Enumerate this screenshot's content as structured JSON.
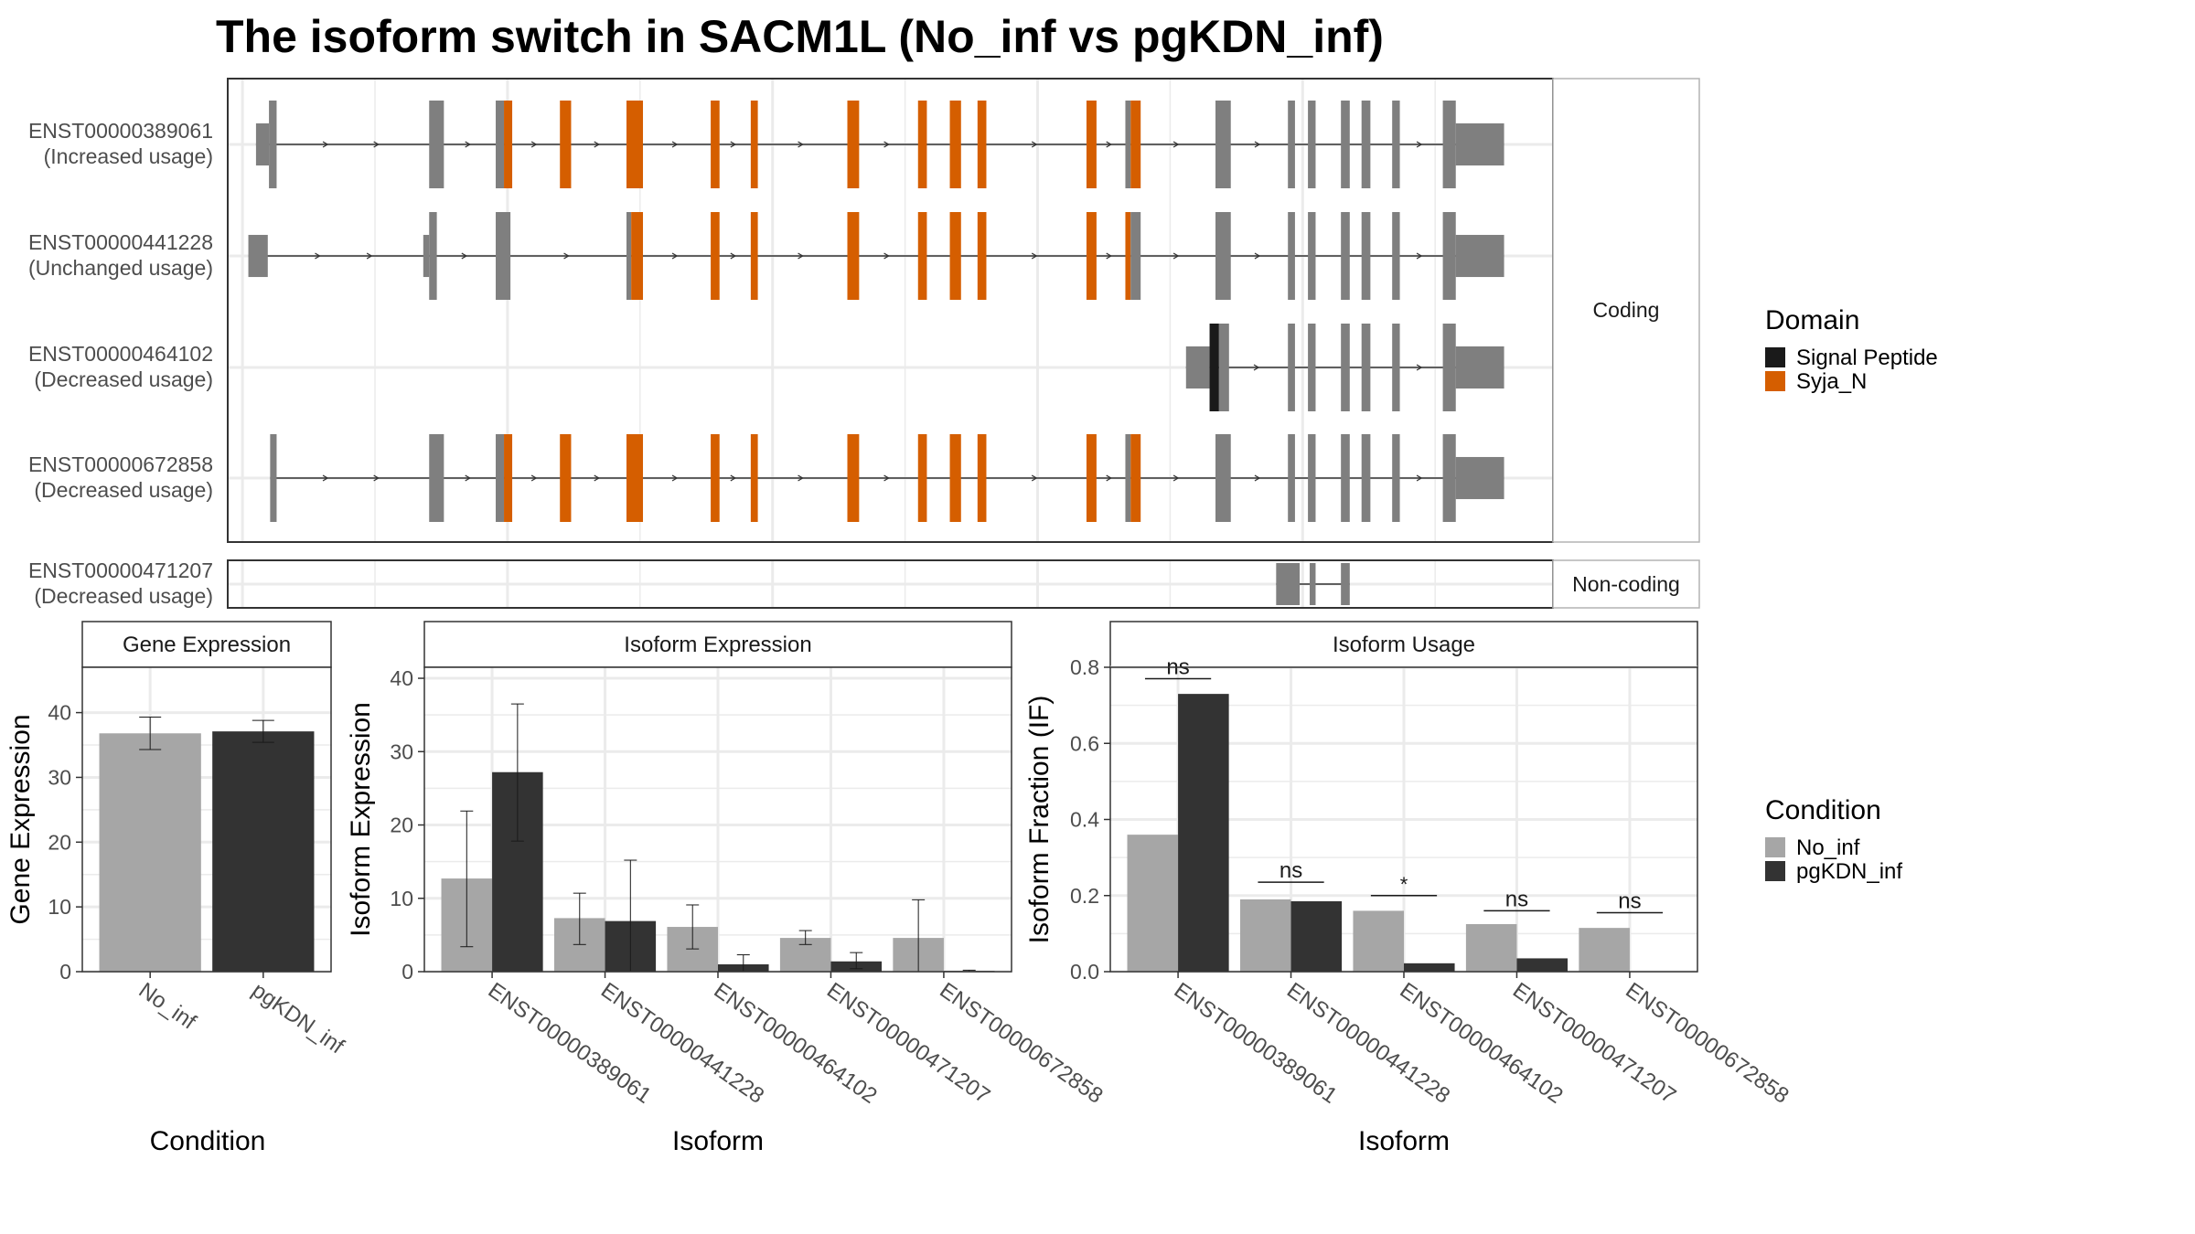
{
  "chart_data": [
    {
      "type": "gene-structure",
      "title": "The isoform switch in SACM1L (No_inf vs pgKDN_inf)",
      "coding_facet_label": "Coding",
      "noncoding_facet_label": "Non-coding",
      "legend": {
        "title": "Domain",
        "entries": [
          {
            "name": "Signal Peptide",
            "color": "#1a1a1a"
          },
          {
            "name": "Syja_N",
            "color": "#d55e00"
          }
        ]
      },
      "colors": {
        "exon": "#7f7f7f",
        "intron": "#333333",
        "grid": "#ebebeb",
        "frame": "#333333"
      },
      "genomic_range": [
        100,
        2350
      ],
      "transcripts": [
        {
          "id": "ENST00000389061",
          "usage": "(Increased usage)",
          "group": "coding",
          "exons": [
            {
              "start": 148,
              "end": 170,
              "h": 0.48,
              "d": "none"
            },
            {
              "start": 170,
              "end": 183,
              "h": 1,
              "d": "none"
            },
            {
              "start": 442,
              "end": 467,
              "h": 1,
              "d": "none"
            },
            {
              "start": 555,
              "end": 569,
              "h": 1,
              "d": "none"
            },
            {
              "start": 569,
              "end": 583,
              "h": 1,
              "d": "Syja_N"
            },
            {
              "start": 664,
              "end": 683,
              "h": 1,
              "d": "Syja_N"
            },
            {
              "start": 777,
              "end": 805,
              "h": 1,
              "d": "Syja_N"
            },
            {
              "start": 920,
              "end": 935,
              "h": 1,
              "d": "Syja_N"
            },
            {
              "start": 988,
              "end": 1000,
              "h": 1,
              "d": "Syja_N"
            },
            {
              "start": 1152,
              "end": 1172,
              "h": 1,
              "d": "Syja_N"
            },
            {
              "start": 1272,
              "end": 1287,
              "h": 1,
              "d": "Syja_N"
            },
            {
              "start": 1326,
              "end": 1345,
              "h": 1,
              "d": "Syja_N"
            },
            {
              "start": 1373,
              "end": 1388,
              "h": 1,
              "d": "Syja_N"
            },
            {
              "start": 1558,
              "end": 1575,
              "h": 1,
              "d": "Syja_N"
            },
            {
              "start": 1624,
              "end": 1633,
              "h": 1,
              "d": "none"
            },
            {
              "start": 1633,
              "end": 1650,
              "h": 1,
              "d": "Syja_N"
            },
            {
              "start": 1777,
              "end": 1803,
              "h": 1,
              "d": "none"
            },
            {
              "start": 1900,
              "end": 1912,
              "h": 1,
              "d": "none"
            },
            {
              "start": 1934,
              "end": 1947,
              "h": 1,
              "d": "none"
            },
            {
              "start": 1990,
              "end": 2005,
              "h": 1,
              "d": "none"
            },
            {
              "start": 2025,
              "end": 2040,
              "h": 1,
              "d": "none"
            },
            {
              "start": 2077,
              "end": 2090,
              "h": 1,
              "d": "none"
            },
            {
              "start": 2163,
              "end": 2185,
              "h": 1,
              "d": "none"
            },
            {
              "start": 2185,
              "end": 2267,
              "h": 0.48,
              "d": "none"
            }
          ]
        },
        {
          "id": "ENST00000441228",
          "usage": "(Unchanged usage)",
          "group": "coding",
          "exons": [
            {
              "start": 135,
              "end": 168,
              "h": 0.48,
              "d": "none"
            },
            {
              "start": 432,
              "end": 442,
              "h": 0.48,
              "d": "none"
            },
            {
              "start": 442,
              "end": 455,
              "h": 1,
              "d": "none"
            },
            {
              "start": 555,
              "end": 580,
              "h": 1,
              "d": "none"
            },
            {
              "start": 777,
              "end": 785,
              "h": 1,
              "d": "none"
            },
            {
              "start": 785,
              "end": 805,
              "h": 1,
              "d": "Syja_N"
            },
            {
              "start": 920,
              "end": 935,
              "h": 1,
              "d": "Syja_N"
            },
            {
              "start": 988,
              "end": 1000,
              "h": 1,
              "d": "Syja_N"
            },
            {
              "start": 1152,
              "end": 1172,
              "h": 1,
              "d": "Syja_N"
            },
            {
              "start": 1272,
              "end": 1287,
              "h": 1,
              "d": "Syja_N"
            },
            {
              "start": 1326,
              "end": 1345,
              "h": 1,
              "d": "Syja_N"
            },
            {
              "start": 1373,
              "end": 1388,
              "h": 1,
              "d": "Syja_N"
            },
            {
              "start": 1558,
              "end": 1575,
              "h": 1,
              "d": "Syja_N"
            },
            {
              "start": 1624,
              "end": 1633,
              "h": 1,
              "d": "Syja_N"
            },
            {
              "start": 1633,
              "end": 1650,
              "h": 1,
              "d": "none"
            },
            {
              "start": 1777,
              "end": 1803,
              "h": 1,
              "d": "none"
            },
            {
              "start": 1900,
              "end": 1912,
              "h": 1,
              "d": "none"
            },
            {
              "start": 1934,
              "end": 1947,
              "h": 1,
              "d": "none"
            },
            {
              "start": 1990,
              "end": 2005,
              "h": 1,
              "d": "none"
            },
            {
              "start": 2025,
              "end": 2040,
              "h": 1,
              "d": "none"
            },
            {
              "start": 2077,
              "end": 2090,
              "h": 1,
              "d": "none"
            },
            {
              "start": 2163,
              "end": 2185,
              "h": 1,
              "d": "none"
            },
            {
              "start": 2185,
              "end": 2267,
              "h": 0.48,
              "d": "none"
            }
          ]
        },
        {
          "id": "ENST00000464102",
          "usage": "(Decreased usage)",
          "group": "coding",
          "exons": [
            {
              "start": 1727,
              "end": 1767,
              "h": 0.48,
              "d": "none"
            },
            {
              "start": 1767,
              "end": 1783,
              "h": 1,
              "d": "Signal Peptide"
            },
            {
              "start": 1783,
              "end": 1800,
              "h": 1,
              "d": "none"
            },
            {
              "start": 1900,
              "end": 1912,
              "h": 1,
              "d": "none"
            },
            {
              "start": 1934,
              "end": 1947,
              "h": 1,
              "d": "none"
            },
            {
              "start": 1990,
              "end": 2005,
              "h": 1,
              "d": "none"
            },
            {
              "start": 2025,
              "end": 2040,
              "h": 1,
              "d": "none"
            },
            {
              "start": 2077,
              "end": 2090,
              "h": 1,
              "d": "none"
            },
            {
              "start": 2163,
              "end": 2185,
              "h": 1,
              "d": "none"
            },
            {
              "start": 2185,
              "end": 2267,
              "h": 0.48,
              "d": "none"
            }
          ]
        },
        {
          "id": "ENST00000672858",
          "usage": "(Decreased usage)",
          "group": "coding",
          "exons": [
            {
              "start": 172,
              "end": 183,
              "h": 1,
              "d": "none"
            },
            {
              "start": 442,
              "end": 467,
              "h": 1,
              "d": "none"
            },
            {
              "start": 555,
              "end": 569,
              "h": 1,
              "d": "none"
            },
            {
              "start": 569,
              "end": 583,
              "h": 1,
              "d": "Syja_N"
            },
            {
              "start": 664,
              "end": 683,
              "h": 1,
              "d": "Syja_N"
            },
            {
              "start": 777,
              "end": 805,
              "h": 1,
              "d": "Syja_N"
            },
            {
              "start": 920,
              "end": 935,
              "h": 1,
              "d": "Syja_N"
            },
            {
              "start": 988,
              "end": 1000,
              "h": 1,
              "d": "Syja_N"
            },
            {
              "start": 1152,
              "end": 1172,
              "h": 1,
              "d": "Syja_N"
            },
            {
              "start": 1272,
              "end": 1287,
              "h": 1,
              "d": "Syja_N"
            },
            {
              "start": 1326,
              "end": 1345,
              "h": 1,
              "d": "Syja_N"
            },
            {
              "start": 1373,
              "end": 1388,
              "h": 1,
              "d": "Syja_N"
            },
            {
              "start": 1558,
              "end": 1575,
              "h": 1,
              "d": "Syja_N"
            },
            {
              "start": 1624,
              "end": 1633,
              "h": 1,
              "d": "none"
            },
            {
              "start": 1633,
              "end": 1650,
              "h": 1,
              "d": "Syja_N"
            },
            {
              "start": 1777,
              "end": 1803,
              "h": 1,
              "d": "none"
            },
            {
              "start": 1900,
              "end": 1912,
              "h": 1,
              "d": "none"
            },
            {
              "start": 1934,
              "end": 1947,
              "h": 1,
              "d": "none"
            },
            {
              "start": 1990,
              "end": 2005,
              "h": 1,
              "d": "none"
            },
            {
              "start": 2025,
              "end": 2040,
              "h": 1,
              "d": "none"
            },
            {
              "start": 2077,
              "end": 2090,
              "h": 1,
              "d": "none"
            },
            {
              "start": 2163,
              "end": 2185,
              "h": 1,
              "d": "none"
            },
            {
              "start": 2185,
              "end": 2267,
              "h": 0.48,
              "d": "none"
            }
          ]
        },
        {
          "id": "ENST00000471207",
          "usage": "(Decreased usage)",
          "group": "noncoding",
          "exons": [
            {
              "start": 1880,
              "end": 1920,
              "h": 1,
              "d": "none"
            },
            {
              "start": 1937,
              "end": 1947,
              "h": 1,
              "d": "none"
            },
            {
              "start": 1990,
              "end": 2005,
              "h": 1,
              "d": "none"
            }
          ]
        }
      ]
    },
    {
      "type": "bar",
      "facet_title": "Gene Expression",
      "xlabel": "Condition",
      "ylabel": "Gene Expression",
      "ylim": [
        0,
        47
      ],
      "yticks": [
        0,
        10,
        20,
        30,
        40
      ],
      "categories": [
        "No_inf",
        "pgKDN_inf"
      ],
      "values": [
        36.8,
        37.1
      ],
      "errors_low": [
        34.3,
        35.4
      ],
      "errors_high": [
        39.3,
        38.8
      ],
      "colors": [
        "#a6a6a6",
        "#333333"
      ],
      "grid": true
    },
    {
      "type": "bar",
      "facet_title": "Isoform Expression",
      "xlabel": "Isoform",
      "ylabel": "Isoform Expression",
      "ylim": [
        0,
        41.5
      ],
      "yticks": [
        0,
        10,
        20,
        30,
        40
      ],
      "categories": [
        "ENST00000389061",
        "ENST00000441228",
        "ENST00000464102",
        "ENST00000471207",
        "ENST00000672858"
      ],
      "series": [
        {
          "name": "No_inf",
          "color": "#a6a6a6",
          "values": [
            12.7,
            7.3,
            6.1,
            4.6,
            4.6
          ],
          "err_low": [
            3.4,
            3.7,
            3.1,
            3.7,
            0
          ],
          "err_high": [
            21.9,
            10.7,
            9.1,
            5.6,
            9.8
          ]
        },
        {
          "name": "pgKDN_inf",
          "color": "#333333",
          "values": [
            27.2,
            6.9,
            1.0,
            1.4,
            0.1
          ],
          "err_low": [
            17.8,
            0,
            0,
            0.4,
            0
          ],
          "err_high": [
            36.5,
            15.2,
            2.3,
            2.6,
            0.2
          ]
        }
      ],
      "grid": true
    },
    {
      "type": "bar",
      "facet_title": "Isoform Usage",
      "xlabel": "Isoform",
      "ylabel": "Isoform Fraction (IF)",
      "ylim": [
        0,
        0.8
      ],
      "yticks": [
        0.0,
        0.2,
        0.4,
        0.6,
        0.8
      ],
      "ytick_labels": [
        "0.0",
        "0.2",
        "0.4",
        "0.6",
        "0.8"
      ],
      "categories": [
        "ENST00000389061",
        "ENST00000441228",
        "ENST00000464102",
        "ENST00000471207",
        "ENST00000672858"
      ],
      "series": [
        {
          "name": "No_inf",
          "color": "#a6a6a6",
          "values": [
            0.36,
            0.19,
            0.16,
            0.125,
            0.115
          ]
        },
        {
          "name": "pgKDN_inf",
          "color": "#333333",
          "values": [
            0.73,
            0.185,
            0.022,
            0.035,
            0.0
          ]
        }
      ],
      "significance": [
        {
          "label": "ns",
          "y": 0.77
        },
        {
          "label": "ns",
          "y": 0.235
        },
        {
          "label": "*",
          "y": 0.2
        },
        {
          "label": "ns",
          "y": 0.16
        },
        {
          "label": "ns",
          "y": 0.155
        }
      ],
      "grid": true
    }
  ],
  "condition_legend": {
    "title": "Condition",
    "entries": [
      {
        "name": "No_inf",
        "color": "#a6a6a6"
      },
      {
        "name": "pgKDN_inf",
        "color": "#333333"
      }
    ]
  }
}
